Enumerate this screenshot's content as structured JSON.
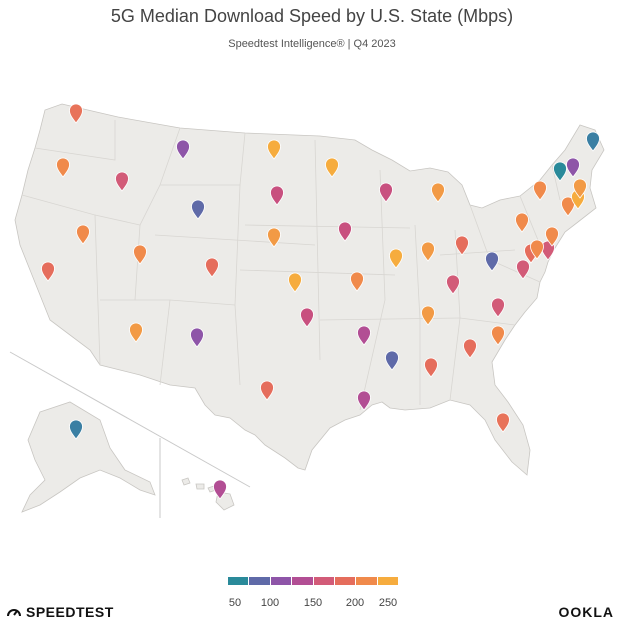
{
  "title": "5G Median Download Speed by U.S. State (Mbps)",
  "subtitle": "Speedtest Intelligence® | Q4 2023",
  "legend": {
    "colors": [
      "#2a8a9a",
      "#5f6aa8",
      "#8e55a8",
      "#b24e94",
      "#d25b78",
      "#e56d5c",
      "#f08a4b",
      "#f6ac3e"
    ],
    "ticks": [
      "50",
      "100",
      "150",
      "200",
      "250"
    ]
  },
  "branding": {
    "left": "SPEEDTEST",
    "right": "OOKLA"
  },
  "markers": [
    {
      "state": "WA",
      "color": "#e8735a"
    },
    {
      "state": "OR",
      "color": "#f08a4b"
    },
    {
      "state": "CA",
      "color": "#e56d5c"
    },
    {
      "state": "NV",
      "color": "#f08a4b"
    },
    {
      "state": "ID",
      "color": "#d25b78"
    },
    {
      "state": "MT",
      "color": "#8e55a8"
    },
    {
      "state": "WY",
      "color": "#5f6aa8"
    },
    {
      "state": "UT",
      "color": "#f08a4b"
    },
    {
      "state": "AZ",
      "color": "#f29a45"
    },
    {
      "state": "CO",
      "color": "#e56d5c"
    },
    {
      "state": "NM",
      "color": "#8e55a8"
    },
    {
      "state": "ND",
      "color": "#f6ac3e"
    },
    {
      "state": "SD",
      "color": "#c8507f"
    },
    {
      "state": "NE",
      "color": "#f29a45"
    },
    {
      "state": "KS",
      "color": "#f6ac3e"
    },
    {
      "state": "OK",
      "color": "#c8507f"
    },
    {
      "state": "TX",
      "color": "#e56d5c"
    },
    {
      "state": "MN",
      "color": "#f6ac3e"
    },
    {
      "state": "IA",
      "color": "#c8507f"
    },
    {
      "state": "MO",
      "color": "#f08a4b"
    },
    {
      "state": "AR",
      "color": "#b24e94"
    },
    {
      "state": "LA",
      "color": "#b24e94"
    },
    {
      "state": "WI",
      "color": "#c8507f"
    },
    {
      "state": "IL",
      "color": "#f6ac3e"
    },
    {
      "state": "MI",
      "color": "#f29a45"
    },
    {
      "state": "IN",
      "color": "#f29a45"
    },
    {
      "state": "OH",
      "color": "#e56d5c"
    },
    {
      "state": "KY",
      "color": "#d25b78"
    },
    {
      "state": "TN",
      "color": "#f29a45"
    },
    {
      "state": "MS",
      "color": "#5f6aa8"
    },
    {
      "state": "AL",
      "color": "#e56d5c"
    },
    {
      "state": "GA",
      "color": "#e56d5c"
    },
    {
      "state": "FL",
      "color": "#e8735a"
    },
    {
      "state": "SC",
      "color": "#f08a4b"
    },
    {
      "state": "NC",
      "color": "#d25b78"
    },
    {
      "state": "VA",
      "color": "#d25b78"
    },
    {
      "state": "WV",
      "color": "#5f6aa8"
    },
    {
      "state": "PA",
      "color": "#f08a4b"
    },
    {
      "state": "NY",
      "color": "#f08a4b"
    },
    {
      "state": "MD",
      "color": "#e56d5c"
    },
    {
      "state": "DE",
      "color": "#d25b78"
    },
    {
      "state": "NJ",
      "color": "#f08a4b"
    },
    {
      "state": "DC",
      "color": "#f08a4b"
    },
    {
      "state": "CT",
      "color": "#f08a4b"
    },
    {
      "state": "RI",
      "color": "#f6ac3e"
    },
    {
      "state": "MA",
      "color": "#f29a45"
    },
    {
      "state": "VT",
      "color": "#2a8a9a"
    },
    {
      "state": "NH",
      "color": "#8e55a8"
    },
    {
      "state": "ME",
      "color": "#3a7fa3"
    },
    {
      "state": "AK",
      "color": "#3a7fa3"
    },
    {
      "state": "HI",
      "color": "#b24e94"
    }
  ]
}
